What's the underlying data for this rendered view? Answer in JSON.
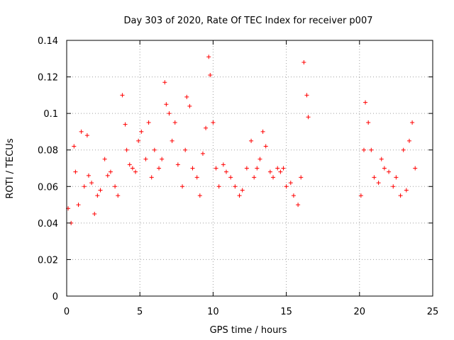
{
  "chart_data": {
    "type": "scatter",
    "title": "Day 303 of 2020, Rate Of TEC Index for receiver p007",
    "xlabel": "GPS time / hours",
    "ylabel": "ROTI / TECUs",
    "xlim": [
      0,
      25
    ],
    "ylim": [
      0,
      0.14
    ],
    "xticks": [
      0,
      5,
      10,
      15,
      20,
      25
    ],
    "yticks": [
      0,
      0.02,
      0.04,
      0.06,
      0.08,
      0.1,
      0.12,
      0.14
    ],
    "xtick_labels": [
      "0",
      "5",
      "10",
      "15",
      "20",
      "25"
    ],
    "ytick_labels": [
      "0",
      "0.02",
      "0.04",
      "0.06",
      "0.08",
      "0.1",
      "0.12",
      "0.14"
    ],
    "grid": true,
    "marker": "+",
    "color": "#ff0000",
    "series": [
      {
        "x": [
          0.1,
          0.3,
          0.5,
          0.6,
          0.8,
          1.0,
          1.2,
          1.4,
          1.5,
          1.7,
          1.9,
          2.1,
          2.3,
          2.6,
          2.8,
          3.0,
          3.3,
          3.5,
          3.8,
          4.0,
          4.1,
          4.3,
          4.5,
          4.7,
          4.9,
          5.1,
          5.4,
          5.6,
          5.8,
          6.0,
          6.3,
          6.5,
          6.7,
          6.8,
          7.0,
          7.2,
          7.4,
          7.6,
          7.9,
          8.1,
          8.2,
          8.4,
          8.6,
          8.9,
          9.1,
          9.3,
          9.5,
          9.7,
          9.8,
          10.0,
          10.2,
          10.4,
          10.7,
          10.9,
          11.2,
          11.5,
          11.8,
          12.0,
          12.3,
          12.6,
          12.8,
          13.0,
          13.2,
          13.4,
          13.6,
          13.9,
          14.1,
          14.4,
          14.6,
          14.8,
          15.0,
          15.3,
          15.5,
          15.8,
          16.0,
          16.2,
          16.4,
          16.5,
          20.1,
          20.3,
          20.4,
          20.6,
          20.8,
          21.0,
          21.3,
          21.5,
          21.7,
          22.0,
          22.3,
          22.5,
          22.8,
          23.0,
          23.2,
          23.4,
          23.6,
          23.8
        ],
        "y": [
          0.048,
          0.04,
          0.082,
          0.068,
          0.05,
          0.09,
          0.06,
          0.088,
          0.066,
          0.062,
          0.045,
          0.055,
          0.058,
          0.075,
          0.066,
          0.068,
          0.06,
          0.055,
          0.11,
          0.094,
          0.08,
          0.072,
          0.07,
          0.068,
          0.085,
          0.09,
          0.075,
          0.095,
          0.065,
          0.08,
          0.07,
          0.075,
          0.117,
          0.105,
          0.1,
          0.085,
          0.095,
          0.072,
          0.06,
          0.08,
          0.109,
          0.104,
          0.07,
          0.065,
          0.055,
          0.078,
          0.092,
          0.131,
          0.121,
          0.095,
          0.07,
          0.06,
          0.072,
          0.068,
          0.065,
          0.06,
          0.055,
          0.058,
          0.07,
          0.085,
          0.065,
          0.07,
          0.075,
          0.09,
          0.082,
          0.068,
          0.065,
          0.07,
          0.068,
          0.07,
          0.06,
          0.062,
          0.055,
          0.05,
          0.065,
          0.128,
          0.11,
          0.098,
          0.055,
          0.08,
          0.106,
          0.095,
          0.08,
          0.065,
          0.062,
          0.075,
          0.07,
          0.068,
          0.06,
          0.065,
          0.055,
          0.08,
          0.058,
          0.085,
          0.095,
          0.07
        ]
      }
    ]
  }
}
